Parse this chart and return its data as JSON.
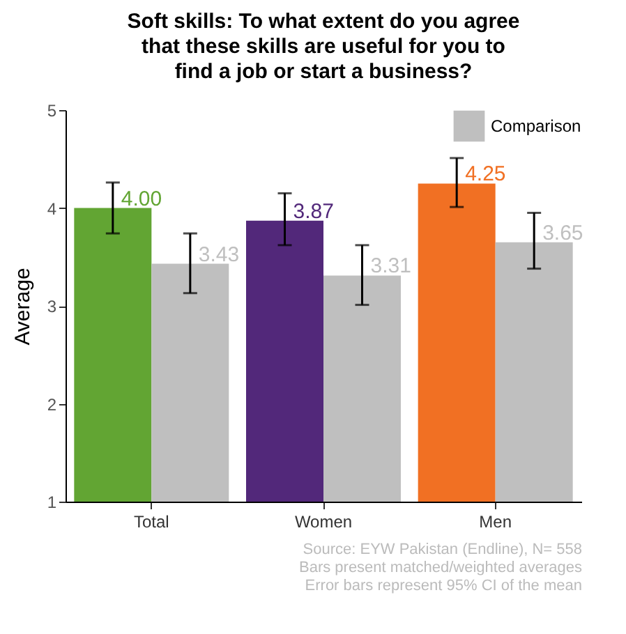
{
  "chart_data": {
    "type": "bar",
    "title": "Soft skills: To what extent do you agree that these skills are useful for you to find a job or start a business?",
    "ylabel": "Average",
    "categories": [
      "Total",
      "Women",
      "Men"
    ],
    "series": [
      {
        "colors": [
          "#62a533",
          "#52287a",
          "#f17023"
        ],
        "values": [
          4.0,
          3.87,
          4.25
        ],
        "value_labels": [
          "4.00",
          "3.87",
          "4.25"
        ],
        "errors": [
          [
            3.74,
            4.26
          ],
          [
            3.62,
            4.15
          ],
          [
            4.01,
            4.51
          ]
        ]
      },
      {
        "name": "Comparison",
        "color": "#bfbfbf",
        "values": [
          3.43,
          3.31,
          3.65
        ],
        "value_labels": [
          "3.43",
          "3.31",
          "3.65"
        ],
        "errors": [
          [
            3.13,
            3.74
          ],
          [
            3.01,
            3.62
          ],
          [
            3.38,
            3.95
          ]
        ]
      }
    ],
    "ylim": [
      1,
      5
    ],
    "yticks": [
      1,
      2,
      3,
      4,
      5
    ],
    "grid": false,
    "legend": "top right",
    "annotations": [
      "Source: EYW Pakistan (Endline), N= 558",
      "Bars present matched/weighted averages",
      "Error bars represent 95% CI of the mean"
    ]
  }
}
